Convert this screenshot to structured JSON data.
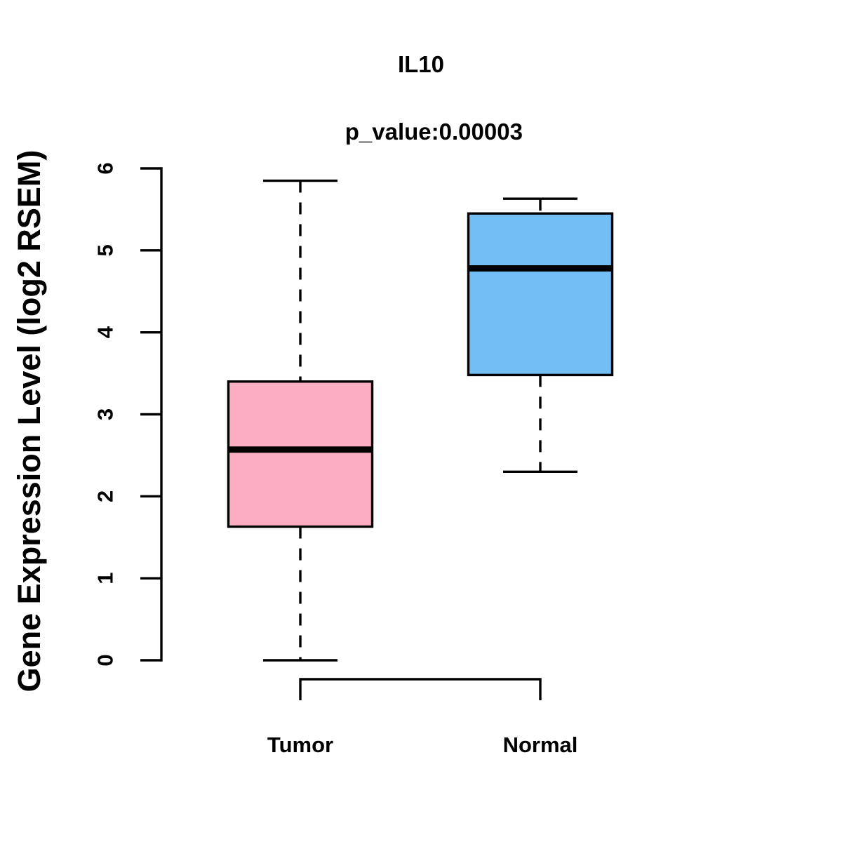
{
  "chart_data": {
    "type": "boxplot",
    "title": "IL10",
    "subtitle": "p_value:0.00003",
    "ylabel": "Gene Expression Level (log2 RSEM)",
    "xlabel": "",
    "ylim": [
      0,
      6
    ],
    "yticks": [
      0,
      1,
      2,
      3,
      4,
      5,
      6
    ],
    "grid": false,
    "legend": "none",
    "categories": [
      "Tumor",
      "Normal"
    ],
    "series": [
      {
        "name": "Tumor",
        "box_color": "#FBAEC2",
        "whisker_low": 0.0,
        "q1": 1.63,
        "median": 2.57,
        "q3": 3.4,
        "whisker_high": 5.85
      },
      {
        "name": "Normal",
        "box_color": "#73BEF4",
        "whisker_low": 2.3,
        "q1": 3.48,
        "median": 4.78,
        "q3": 5.45,
        "whisker_high": 5.63
      }
    ],
    "line_color": "#000000",
    "whisker_style": "dashed"
  }
}
